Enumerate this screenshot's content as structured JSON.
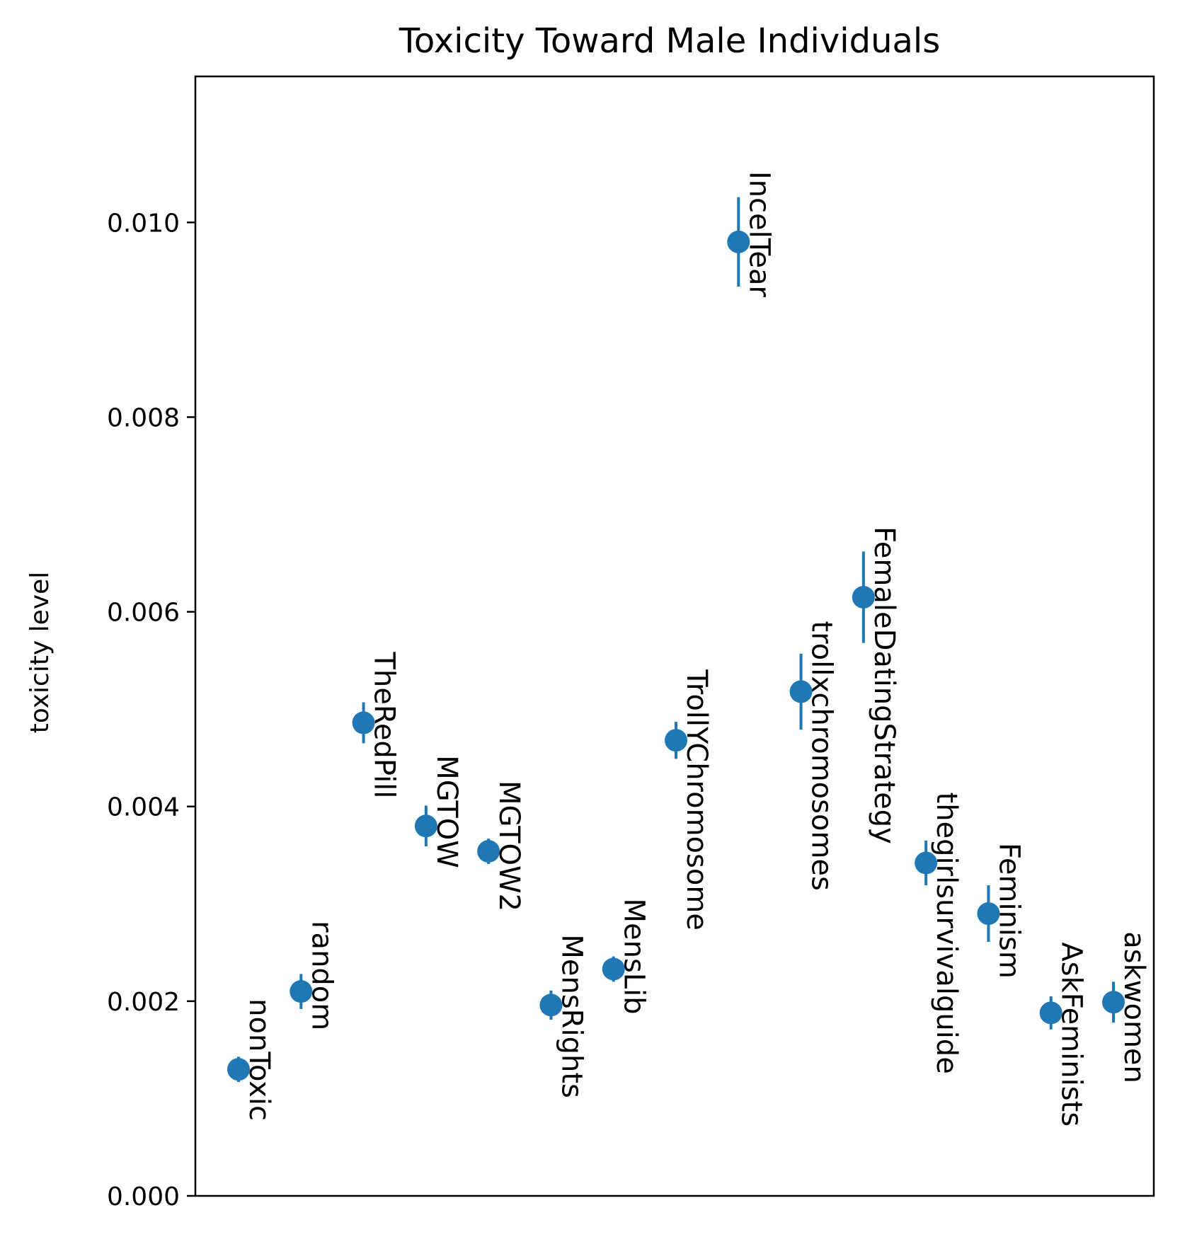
{
  "chart_data": {
    "type": "scatter",
    "title": "Toxicity Toward Male Individuals",
    "xlabel": "",
    "ylabel": "toxicity level",
    "ylim": [
      0,
      0.0115
    ],
    "yticks": [
      "0.000",
      "0.002",
      "0.004",
      "0.006",
      "0.008",
      "0.010"
    ],
    "ytick_values": [
      0,
      0.002,
      0.004,
      0.006,
      0.008,
      0.01
    ],
    "grid": false,
    "marker_color": "#1f77b4",
    "categories": [
      "nonToxic",
      "random",
      "TheRedPill",
      "MGTOW",
      "MGTOW2",
      "MensRights",
      "MensLib",
      "TrollYChromosome",
      "IncelTear",
      "trollxchromosomes",
      "FemaleDatingStrategy",
      "thegirlsurvivalguide",
      "Feminism",
      "AskFeminists",
      "askwomen"
    ],
    "values": [
      0.0013,
      0.0021,
      0.00486,
      0.0038,
      0.00354,
      0.00196,
      0.00233,
      0.00468,
      0.0098,
      0.00518,
      0.00615,
      0.00342,
      0.0029,
      0.00188,
      0.00199
    ],
    "errors": [
      0.00013,
      0.00018,
      0.00021,
      0.00021,
      0.00013,
      0.00015,
      0.00013,
      0.00019,
      0.00046,
      0.00039,
      0.00047,
      0.00023,
      0.00029,
      0.00017,
      0.00021
    ]
  }
}
